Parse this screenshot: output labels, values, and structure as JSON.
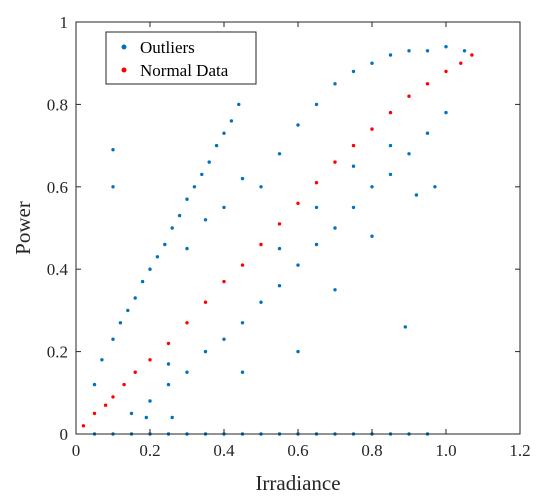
{
  "chart_data": {
    "type": "scatter",
    "xlabel": "Irradiance",
    "ylabel": "Power",
    "xlim": [
      0,
      1.2
    ],
    "ylim": [
      0,
      1
    ],
    "x_ticks": [
      "0",
      "0.2",
      "0.4",
      "0.6",
      "0.8",
      "1.0",
      "1.2"
    ],
    "y_ticks": [
      "0",
      "0.2",
      "0.4",
      "0.6",
      "0.8",
      "1"
    ],
    "grid": false,
    "legend_position": "top-left",
    "series": [
      {
        "name": "Outliers",
        "color": "#0072BD",
        "points": [
          [
            0.05,
            0.12
          ],
          [
            0.07,
            0.18
          ],
          [
            0.1,
            0.23
          ],
          [
            0.12,
            0.27
          ],
          [
            0.14,
            0.3
          ],
          [
            0.16,
            0.33
          ],
          [
            0.18,
            0.37
          ],
          [
            0.2,
            0.4
          ],
          [
            0.22,
            0.43
          ],
          [
            0.24,
            0.46
          ],
          [
            0.26,
            0.5
          ],
          [
            0.28,
            0.53
          ],
          [
            0.3,
            0.57
          ],
          [
            0.32,
            0.6
          ],
          [
            0.34,
            0.63
          ],
          [
            0.36,
            0.66
          ],
          [
            0.38,
            0.7
          ],
          [
            0.4,
            0.73
          ],
          [
            0.42,
            0.76
          ],
          [
            0.44,
            0.8
          ],
          [
            0.15,
            0.05
          ],
          [
            0.2,
            0.08
          ],
          [
            0.25,
            0.12
          ],
          [
            0.3,
            0.15
          ],
          [
            0.35,
            0.2
          ],
          [
            0.4,
            0.23
          ],
          [
            0.45,
            0.27
          ],
          [
            0.5,
            0.32
          ],
          [
            0.55,
            0.36
          ],
          [
            0.6,
            0.41
          ],
          [
            0.65,
            0.46
          ],
          [
            0.7,
            0.5
          ],
          [
            0.75,
            0.55
          ],
          [
            0.8,
            0.6
          ],
          [
            0.85,
            0.63
          ],
          [
            0.9,
            0.68
          ],
          [
            0.95,
            0.73
          ],
          [
            1.0,
            0.78
          ],
          [
            0.5,
            0.6
          ],
          [
            0.55,
            0.68
          ],
          [
            0.6,
            0.75
          ],
          [
            0.65,
            0.8
          ],
          [
            0.7,
            0.85
          ],
          [
            0.75,
            0.88
          ],
          [
            0.8,
            0.9
          ],
          [
            0.85,
            0.92
          ],
          [
            0.9,
            0.93
          ],
          [
            0.95,
            0.93
          ],
          [
            1.0,
            0.94
          ],
          [
            1.05,
            0.93
          ],
          [
            0.1,
            0.69
          ],
          [
            0.1,
            0.6
          ],
          [
            0.19,
            0.04
          ],
          [
            0.26,
            0.04
          ],
          [
            0.25,
            0.17
          ],
          [
            0.45,
            0.15
          ],
          [
            0.6,
            0.2
          ],
          [
            0.7,
            0.35
          ],
          [
            0.89,
            0.26
          ],
          [
            0.97,
            0.6
          ],
          [
            0.92,
            0.58
          ],
          [
            0.8,
            0.48
          ],
          [
            0.4,
            0.55
          ],
          [
            0.3,
            0.45
          ],
          [
            0.35,
            0.52
          ],
          [
            0.45,
            0.62
          ],
          [
            0.55,
            0.45
          ],
          [
            0.65,
            0.55
          ],
          [
            0.75,
            0.65
          ],
          [
            0.85,
            0.7
          ],
          [
            0.05,
            0
          ],
          [
            0.1,
            0
          ],
          [
            0.15,
            0
          ],
          [
            0.2,
            0
          ],
          [
            0.25,
            0
          ],
          [
            0.3,
            0
          ],
          [
            0.35,
            0
          ],
          [
            0.4,
            0
          ],
          [
            0.45,
            0
          ],
          [
            0.5,
            0
          ],
          [
            0.55,
            0
          ],
          [
            0.6,
            0
          ],
          [
            0.65,
            0
          ],
          [
            0.7,
            0
          ],
          [
            0.75,
            0
          ],
          [
            0.8,
            0
          ],
          [
            0.85,
            0
          ],
          [
            0.9,
            0
          ],
          [
            0.95,
            0
          ]
        ]
      },
      {
        "name": "Normal Data",
        "color": "#FF0000",
        "points": [
          [
            0.02,
            0.02
          ],
          [
            0.05,
            0.05
          ],
          [
            0.08,
            0.07
          ],
          [
            0.1,
            0.09
          ],
          [
            0.13,
            0.12
          ],
          [
            0.16,
            0.15
          ],
          [
            0.2,
            0.18
          ],
          [
            0.25,
            0.22
          ],
          [
            0.3,
            0.27
          ],
          [
            0.35,
            0.32
          ],
          [
            0.4,
            0.37
          ],
          [
            0.45,
            0.41
          ],
          [
            0.5,
            0.46
          ],
          [
            0.55,
            0.51
          ],
          [
            0.6,
            0.56
          ],
          [
            0.65,
            0.61
          ],
          [
            0.7,
            0.66
          ],
          [
            0.75,
            0.7
          ],
          [
            0.8,
            0.74
          ],
          [
            0.85,
            0.78
          ],
          [
            0.9,
            0.82
          ],
          [
            0.95,
            0.85
          ],
          [
            1.0,
            0.88
          ],
          [
            1.04,
            0.9
          ],
          [
            1.07,
            0.92
          ]
        ]
      }
    ]
  }
}
